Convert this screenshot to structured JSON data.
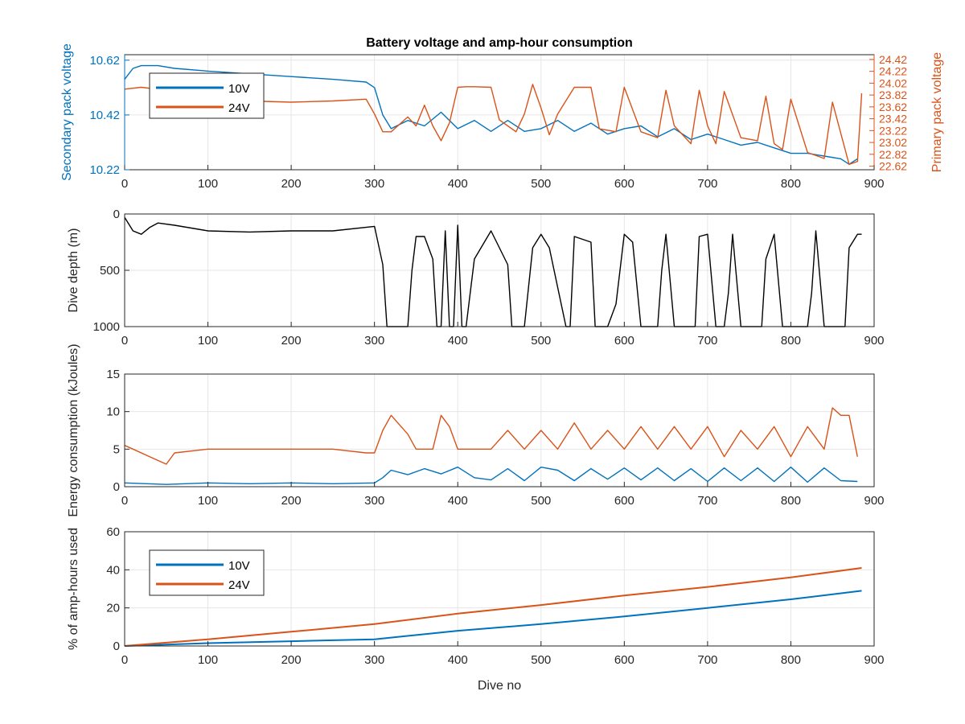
{
  "colors": {
    "blue": "#0072BD",
    "orange": "#D95319",
    "black": "#000000",
    "grid": "#e6e6e6",
    "axis": "#262626"
  },
  "chart_data": [
    {
      "type": "line",
      "title": "Battery voltage and amp-hour consumption",
      "xlabel": "",
      "xlim": [
        0,
        900
      ],
      "xticks": [
        0,
        100,
        200,
        300,
        400,
        500,
        600,
        700,
        800,
        900
      ],
      "ylabel_left": "Secondary pack voltage",
      "ylim_left": [
        10.22,
        10.64
      ],
      "yticks_left": [
        10.22,
        10.42,
        10.62
      ],
      "ylabel_right": "Primary pack voltage",
      "ylim_right": [
        22.56,
        24.5
      ],
      "yticks_right": [
        22.62,
        22.82,
        23.02,
        23.22,
        23.42,
        23.62,
        23.82,
        24.02,
        24.22,
        24.42
      ],
      "grid": true,
      "legend": {
        "location": "top-left",
        "entries": [
          "10V",
          "24V"
        ]
      },
      "series": [
        {
          "name": "10V",
          "axis": "left",
          "x": [
            0,
            10,
            20,
            40,
            60,
            100,
            150,
            200,
            250,
            290,
            300,
            310,
            320,
            340,
            360,
            380,
            400,
            420,
            440,
            460,
            480,
            500,
            520,
            540,
            560,
            580,
            600,
            620,
            640,
            660,
            680,
            700,
            720,
            740,
            760,
            780,
            800,
            820,
            840,
            860,
            870,
            880
          ],
          "y": [
            10.55,
            10.59,
            10.6,
            10.6,
            10.59,
            10.58,
            10.57,
            10.56,
            10.55,
            10.54,
            10.52,
            10.42,
            10.37,
            10.4,
            10.38,
            10.43,
            10.37,
            10.4,
            10.36,
            10.4,
            10.36,
            10.37,
            10.4,
            10.36,
            10.39,
            10.35,
            10.37,
            10.38,
            10.34,
            10.37,
            10.33,
            10.35,
            10.33,
            10.31,
            10.32,
            10.3,
            10.28,
            10.28,
            10.27,
            10.26,
            10.24,
            10.26
          ]
        },
        {
          "name": "24V",
          "axis": "right",
          "x": [
            0,
            20,
            50,
            100,
            150,
            200,
            250,
            290,
            300,
            310,
            320,
            340,
            350,
            360,
            370,
            380,
            390,
            400,
            410,
            420,
            440,
            450,
            470,
            480,
            490,
            500,
            510,
            520,
            540,
            560,
            570,
            590,
            600,
            620,
            640,
            650,
            660,
            680,
            690,
            700,
            710,
            720,
            740,
            760,
            770,
            780,
            790,
            800,
            820,
            840,
            850,
            870,
            880,
            885
          ],
          "y": [
            23.92,
            23.95,
            23.9,
            23.83,
            23.72,
            23.7,
            23.72,
            23.75,
            23.5,
            23.2,
            23.2,
            23.45,
            23.3,
            23.65,
            23.3,
            23.05,
            23.35,
            23.95,
            23.96,
            23.96,
            23.95,
            23.4,
            23.2,
            23.5,
            24.0,
            23.6,
            23.15,
            23.5,
            23.95,
            23.95,
            23.25,
            23.2,
            23.95,
            23.2,
            23.1,
            23.9,
            23.3,
            23.0,
            23.9,
            23.3,
            23.0,
            23.88,
            23.1,
            23.05,
            23.8,
            23.0,
            22.9,
            23.75,
            22.85,
            22.75,
            23.7,
            22.65,
            22.7,
            23.85
          ]
        }
      ]
    },
    {
      "type": "line",
      "title": "",
      "xlabel": "",
      "ylabel": "Dive depth (m)",
      "xlim": [
        0,
        900
      ],
      "xticks": [
        0,
        100,
        200,
        300,
        400,
        500,
        600,
        700,
        800,
        900
      ],
      "ylim": [
        0,
        1000
      ],
      "ydirection": "reverse",
      "yticks": [
        0,
        500,
        1000
      ],
      "grid": true,
      "series": [
        {
          "name": "",
          "x": [
            0,
            10,
            20,
            30,
            40,
            60,
            100,
            150,
            200,
            250,
            300,
            310,
            315,
            330,
            340,
            345,
            350,
            360,
            370,
            375,
            380,
            385,
            390,
            395,
            400,
            405,
            410,
            420,
            440,
            460,
            465,
            470,
            480,
            490,
            500,
            510,
            530,
            535,
            540,
            560,
            565,
            580,
            590,
            600,
            610,
            620,
            640,
            645,
            650,
            660,
            680,
            685,
            690,
            700,
            710,
            720,
            725,
            730,
            740,
            760,
            765,
            770,
            780,
            790,
            800,
            820,
            825,
            830,
            840,
            860,
            865,
            870,
            880,
            885
          ],
          "y": [
            30,
            150,
            180,
            120,
            80,
            100,
            150,
            160,
            150,
            150,
            110,
            450,
            1000,
            1000,
            1000,
            500,
            200,
            200,
            400,
            1000,
            1000,
            150,
            1000,
            1000,
            100,
            1000,
            1000,
            400,
            150,
            450,
            1000,
            1000,
            1000,
            300,
            180,
            300,
            1000,
            1000,
            200,
            250,
            1000,
            1000,
            800,
            180,
            250,
            1000,
            1000,
            500,
            180,
            1000,
            1000,
            1000,
            200,
            180,
            1000,
            1000,
            700,
            180,
            1000,
            1000,
            1000,
            400,
            180,
            1000,
            1000,
            1000,
            700,
            150,
            1000,
            1000,
            1000,
            300,
            180,
            180
          ]
        }
      ]
    },
    {
      "type": "line",
      "title": "",
      "xlabel": "",
      "ylabel": "Energy consumption (kJoules)",
      "xlim": [
        0,
        900
      ],
      "xticks": [
        0,
        100,
        200,
        300,
        400,
        500,
        600,
        700,
        800,
        900
      ],
      "ylim": [
        0,
        15
      ],
      "yticks": [
        0,
        5,
        10,
        15
      ],
      "grid": true,
      "series": [
        {
          "name": "10V",
          "x": [
            0,
            50,
            100,
            150,
            200,
            250,
            300,
            310,
            320,
            340,
            360,
            380,
            400,
            420,
            440,
            460,
            480,
            500,
            520,
            540,
            560,
            580,
            600,
            620,
            640,
            660,
            680,
            700,
            720,
            740,
            760,
            780,
            800,
            820,
            840,
            860,
            880
          ],
          "y": [
            0.5,
            0.3,
            0.5,
            0.4,
            0.5,
            0.4,
            0.5,
            1.2,
            2.2,
            1.6,
            2.4,
            1.7,
            2.6,
            1.2,
            0.9,
            2.4,
            0.8,
            2.6,
            2.2,
            0.8,
            2.4,
            1.0,
            2.5,
            0.9,
            2.5,
            0.8,
            2.4,
            0.7,
            2.5,
            0.8,
            2.5,
            0.7,
            2.6,
            0.6,
            2.5,
            0.8,
            0.7
          ]
        },
        {
          "name": "24V",
          "x": [
            0,
            10,
            30,
            50,
            60,
            100,
            150,
            200,
            250,
            290,
            300,
            310,
            320,
            340,
            350,
            370,
            380,
            390,
            400,
            420,
            440,
            460,
            480,
            500,
            520,
            540,
            560,
            580,
            600,
            620,
            640,
            660,
            680,
            700,
            720,
            740,
            760,
            780,
            800,
            820,
            840,
            850,
            860,
            870,
            880
          ],
          "y": [
            5.5,
            5.0,
            4.0,
            3.0,
            4.5,
            5.0,
            5.0,
            5.0,
            5.0,
            4.5,
            4.5,
            7.5,
            9.5,
            7.0,
            5.0,
            5.0,
            9.5,
            8.0,
            5.0,
            5.0,
            5.0,
            7.5,
            5.0,
            7.5,
            5.0,
            8.5,
            5.0,
            7.5,
            5.0,
            8.0,
            5.0,
            8.0,
            5.0,
            8.0,
            4.0,
            7.5,
            5.0,
            8.0,
            4.0,
            8.0,
            5.0,
            10.5,
            9.5,
            9.5,
            4.0
          ]
        }
      ]
    },
    {
      "type": "line",
      "title": "",
      "xlabel": "Dive no",
      "ylabel": "% of amp-hours used",
      "xlim": [
        0,
        900
      ],
      "xticks": [
        0,
        100,
        200,
        300,
        400,
        500,
        600,
        700,
        800,
        900
      ],
      "ylim": [
        0,
        60
      ],
      "yticks": [
        0,
        20,
        40,
        60
      ],
      "grid": true,
      "legend": {
        "location": "top-left",
        "entries": [
          "10V",
          "24V"
        ]
      },
      "series": [
        {
          "name": "10V",
          "x": [
            0,
            100,
            200,
            300,
            400,
            500,
            600,
            700,
            800,
            885
          ],
          "y": [
            0,
            1.5,
            2.5,
            3.5,
            8,
            11.5,
            15.5,
            20,
            24.5,
            29
          ]
        },
        {
          "name": "24V",
          "x": [
            0,
            100,
            200,
            300,
            400,
            500,
            600,
            700,
            800,
            885
          ],
          "y": [
            0,
            3.5,
            7.5,
            11.5,
            17,
            21.5,
            26.5,
            31,
            36,
            41
          ]
        }
      ]
    }
  ]
}
